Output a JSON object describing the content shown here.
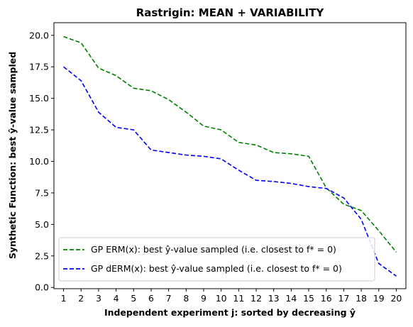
{
  "chart_data": {
    "type": "line",
    "title": "Rastrigin: MEAN + VARIABILITY",
    "xlabel": "Independent experiment j: sorted by decreasing ŷ",
    "ylabel": "Synthetic Function: best ŷ-value sampled",
    "xlim": [
      0.45,
      20.55
    ],
    "ylim": [
      -0.1,
      21.0
    ],
    "x": [
      1,
      2,
      3,
      4,
      5,
      6,
      7,
      8,
      9,
      10,
      11,
      12,
      13,
      14,
      15,
      16,
      17,
      18,
      19,
      20
    ],
    "xticks": [
      "1",
      "2",
      "3",
      "4",
      "5",
      "6",
      "7",
      "8",
      "9",
      "10",
      "11",
      "12",
      "13",
      "14",
      "15",
      "16",
      "17",
      "18",
      "19",
      "20"
    ],
    "yticks": [
      "0.0",
      "2.5",
      "5.0",
      "7.5",
      "10.0",
      "12.5",
      "15.0",
      "17.5",
      "20.0"
    ],
    "ytick_values": [
      0,
      2.5,
      5,
      7.5,
      10,
      12.5,
      15,
      17.5,
      20
    ],
    "grid": false,
    "legend_position": "lower-left",
    "series": [
      {
        "name": "GP ERM(x):   best ŷ-value sampled (i.e. closest to f* = 0)",
        "color": "#008000",
        "style": "dashed",
        "values": [
          19.9,
          19.4,
          17.4,
          16.8,
          15.8,
          15.6,
          14.9,
          13.9,
          12.8,
          12.5,
          11.5,
          11.3,
          10.7,
          10.6,
          10.4,
          7.9,
          6.6,
          6.1,
          4.5,
          2.8
        ]
      },
      {
        "name": "GP dERM(x): best ŷ-value sampled (i.e. closest to f* = 0)",
        "color": "#0000ff",
        "style": "dashed",
        "values": [
          17.5,
          16.4,
          13.9,
          12.7,
          12.5,
          10.9,
          10.7,
          10.5,
          10.4,
          10.2,
          9.3,
          8.5,
          8.4,
          8.25,
          8.0,
          7.85,
          7.1,
          5.4,
          1.9,
          0.9
        ]
      }
    ]
  }
}
